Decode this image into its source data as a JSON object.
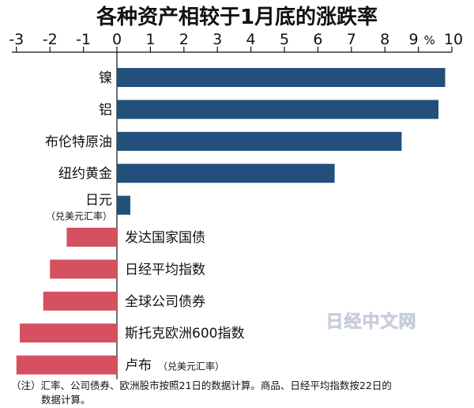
{
  "chart_data": {
    "type": "bar",
    "orientation": "horizontal",
    "title": "各种资产相较于1月底的涨跌率",
    "unit": "%",
    "xlim": [
      -3,
      10
    ],
    "ticks": [
      -3,
      -2,
      -1,
      0,
      1,
      2,
      3,
      4,
      5,
      6,
      7,
      8,
      9,
      10
    ],
    "grid": false,
    "categories": [
      {
        "label": "镍",
        "sublabel": "",
        "value": 9.8
      },
      {
        "label": "铝",
        "sublabel": "",
        "value": 9.6
      },
      {
        "label": "布伦特原油",
        "sublabel": "",
        "value": 8.5
      },
      {
        "label": "纽约黄金",
        "sublabel": "",
        "value": 6.5
      },
      {
        "label": "日元",
        "sublabel": "（兑美元汇率）",
        "value": 0.4
      },
      {
        "label": "发达国家国债",
        "sublabel": "",
        "value": -1.5
      },
      {
        "label": "日经平均指数",
        "sublabel": "",
        "value": -2.0
      },
      {
        "label": "全球公司债券",
        "sublabel": "",
        "value": -2.2
      },
      {
        "label": "斯托克欧洲600指数",
        "sublabel": "",
        "value": -2.9
      },
      {
        "label": "卢布",
        "sublabel": "（兑美元汇率）",
        "value": -3.0
      }
    ],
    "colors": {
      "positive": "#234f7d",
      "negative": "#d5515f"
    }
  },
  "watermark": "日经中文网",
  "note_lines": [
    "（注）汇率、公司债券、欧洲股市按照21日的数据计算。商品、日经平均指数按22日的",
    "数据计算。"
  ]
}
